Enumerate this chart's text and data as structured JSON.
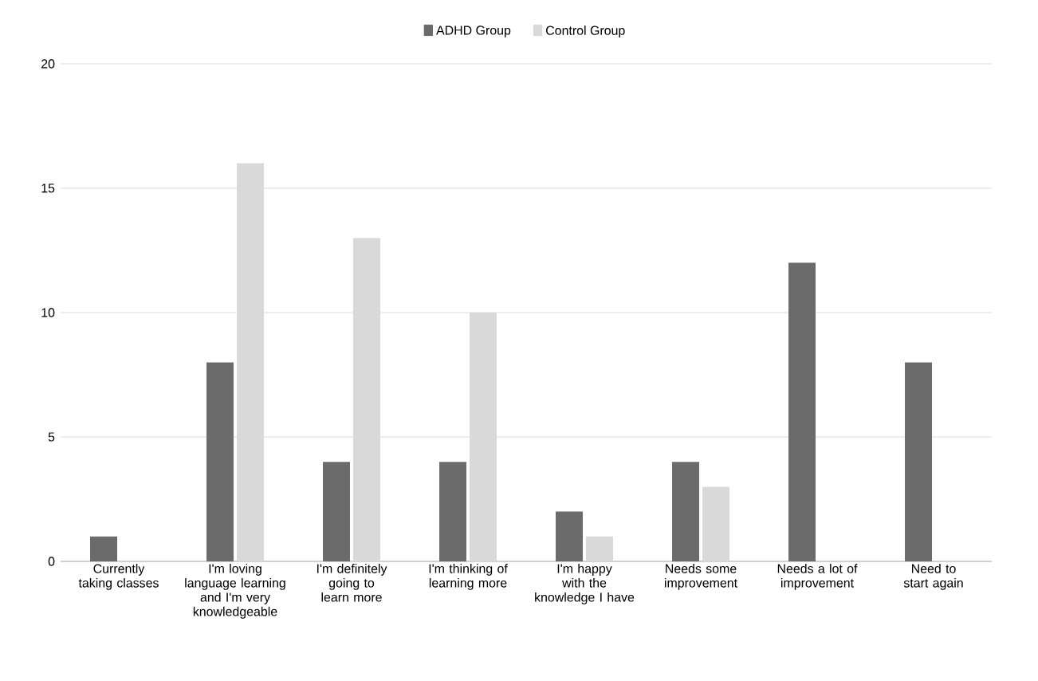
{
  "chart_data": {
    "type": "bar",
    "categories": [
      "Currently taking classes",
      "I'm loving language learning and I'm very knowledgeable",
      "I'm definitely going to learn more",
      "I'm thinking of learning more",
      "I'm happy with the knowledge I have",
      "Needs some improvement",
      "Needs a lot of improvement",
      "Need to start again"
    ],
    "series": [
      {
        "name": "ADHD Group",
        "color": "#6b6b6b",
        "values": [
          1,
          8,
          4,
          4,
          2,
          4,
          12,
          8
        ]
      },
      {
        "name": "Control Group",
        "color": "#d9d9d9",
        "values": [
          0,
          16,
          13,
          10,
          1,
          3,
          0,
          0
        ]
      }
    ],
    "ylim": [
      0,
      20
    ],
    "yticks": [
      0,
      5,
      10,
      15,
      20
    ],
    "grid": "y",
    "legend": "top"
  }
}
